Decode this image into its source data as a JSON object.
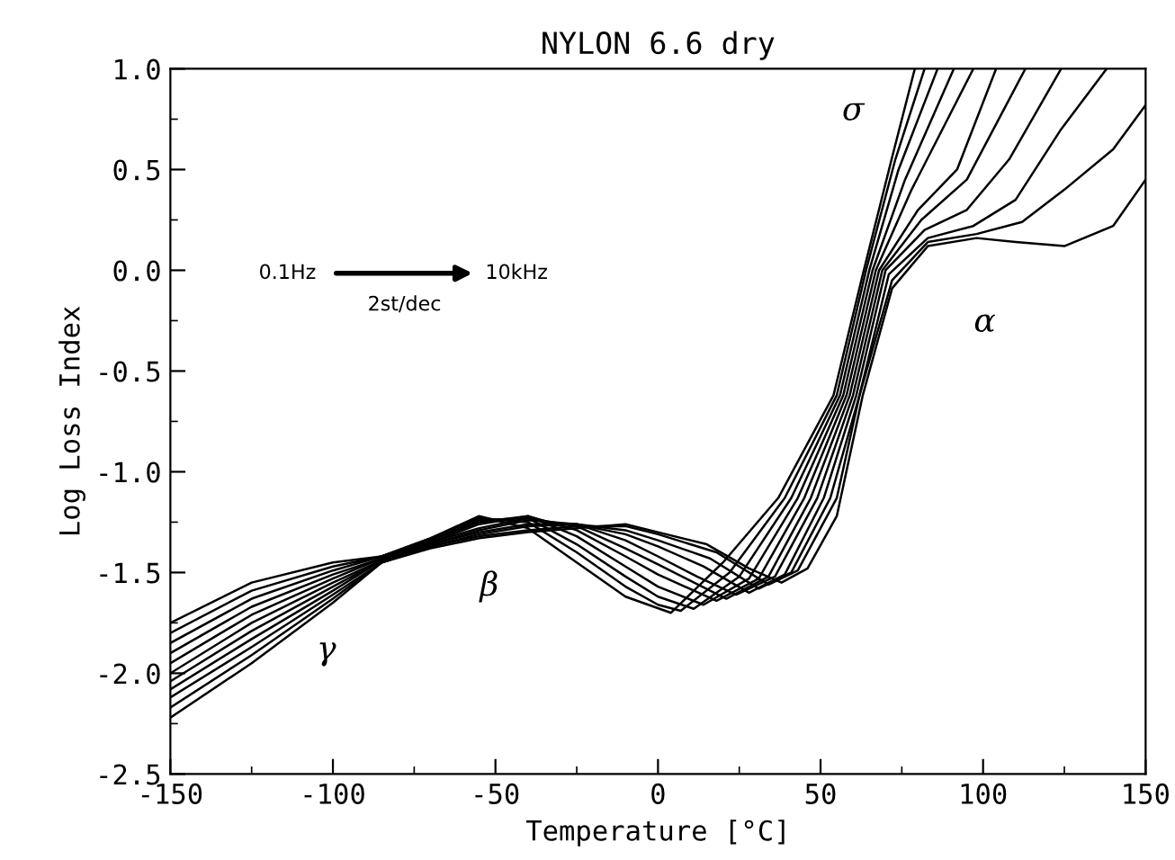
{
  "chart_data": {
    "type": "line",
    "title": "NYLON 6.6 dry",
    "xlabel": "Temperature [°C]",
    "ylabel": "Log Loss Index",
    "xlim": [
      -150,
      150
    ],
    "xticks": [
      -150,
      -100,
      -50,
      0,
      50,
      100,
      150
    ],
    "ylim": [
      -2.5,
      1.0
    ],
    "yticks": [
      {
        "value": -2.5,
        "label": "-2.5"
      },
      {
        "value": -2.0,
        "label": "-2.0"
      },
      {
        "value": -1.5,
        "label": "-1.5"
      },
      {
        "value": -1.0,
        "label": "-1.0"
      },
      {
        "value": -0.5,
        "label": "-0.5"
      },
      {
        "value": 0.0,
        "label": "0.0"
      },
      {
        "value": 0.5,
        "label": "0.5"
      },
      {
        "value": 1.0,
        "label": "1.0"
      }
    ],
    "grid": false,
    "marker": "none",
    "line_style": "solid",
    "series": [
      {
        "color": "#000000",
        "x": [
          -150,
          -125,
          -100,
          -85,
          -70,
          -55,
          -40,
          -25,
          -10,
          4,
          20,
          37,
          54,
          63,
          72,
          79
        ],
        "values": [
          -1.75,
          -1.55,
          -1.45,
          -1.42,
          -1.33,
          -1.22,
          -1.28,
          -1.45,
          -1.62,
          -1.7,
          -1.45,
          -1.13,
          -0.62,
          -0.02,
          0.56,
          1.0
        ]
      },
      {
        "color": "#000000",
        "x": [
          -150,
          -125,
          -100,
          -85,
          -70,
          -55,
          -40,
          -25,
          -10,
          0,
          7,
          22,
          39,
          55,
          64,
          73,
          82
        ],
        "values": [
          -1.8,
          -1.59,
          -1.47,
          -1.42,
          -1.33,
          -1.23,
          -1.25,
          -1.4,
          -1.57,
          -1.66,
          -1.69,
          -1.5,
          -1.13,
          -0.62,
          0.0,
          0.55,
          1.0
        ]
      },
      {
        "color": "#000000",
        "x": [
          -150,
          -125,
          -100,
          -85,
          -70,
          -55,
          -40,
          -25,
          -10,
          0,
          11,
          25,
          41,
          56,
          65,
          74,
          86
        ],
        "values": [
          -1.85,
          -1.63,
          -1.49,
          -1.42,
          -1.34,
          -1.24,
          -1.23,
          -1.36,
          -1.52,
          -1.62,
          -1.68,
          -1.52,
          -1.13,
          -0.62,
          0.0,
          0.5,
          1.0
        ]
      },
      {
        "color": "#000000",
        "x": [
          -150,
          -125,
          -100,
          -85,
          -70,
          -55,
          -40,
          -25,
          -10,
          0,
          14,
          28,
          43,
          57,
          66,
          76,
          91
        ],
        "values": [
          -1.9,
          -1.67,
          -1.51,
          -1.43,
          -1.34,
          -1.25,
          -1.22,
          -1.32,
          -1.47,
          -1.57,
          -1.66,
          -1.53,
          -1.13,
          -0.62,
          0.0,
          0.45,
          1.0
        ]
      },
      {
        "color": "#000000",
        "x": [
          -150,
          -125,
          -100,
          -85,
          -70,
          -55,
          -40,
          -25,
          -10,
          0,
          18,
          31,
          45,
          58,
          67,
          78,
          97
        ],
        "values": [
          -1.95,
          -1.71,
          -1.53,
          -1.43,
          -1.35,
          -1.26,
          -1.22,
          -1.29,
          -1.42,
          -1.51,
          -1.64,
          -1.53,
          -1.13,
          -0.62,
          0.0,
          0.4,
          1.0
        ]
      },
      {
        "color": "#000000",
        "x": [
          -150,
          -125,
          -100,
          -85,
          -70,
          -55,
          -40,
          -25,
          -10,
          0,
          21,
          34,
          47,
          59,
          68,
          80,
          92,
          104
        ],
        "values": [
          -2.0,
          -1.75,
          -1.55,
          -1.44,
          -1.35,
          -1.28,
          -1.23,
          -1.27,
          -1.38,
          -1.46,
          -1.63,
          -1.52,
          -1.13,
          -0.62,
          0.0,
          0.3,
          0.5,
          1.0
        ]
      },
      {
        "color": "#000000",
        "x": [
          -150,
          -125,
          -100,
          -85,
          -70,
          -55,
          -40,
          -25,
          -10,
          0,
          12,
          24,
          36,
          49,
          60,
          69,
          81,
          95,
          113
        ],
        "values": [
          -2.04,
          -1.79,
          -1.57,
          -1.44,
          -1.36,
          -1.29,
          -1.24,
          -1.26,
          -1.34,
          -1.42,
          -1.52,
          -1.61,
          -1.52,
          -1.13,
          -0.62,
          0.0,
          0.25,
          0.45,
          1.0
        ]
      },
      {
        "color": "#000000",
        "x": [
          -150,
          -125,
          -100,
          -85,
          -70,
          -55,
          -40,
          -25,
          -10,
          0,
          14,
          28,
          39,
          51,
          61,
          70,
          82,
          95,
          108,
          124
        ],
        "values": [
          -2.08,
          -1.83,
          -1.59,
          -1.44,
          -1.36,
          -1.3,
          -1.26,
          -1.26,
          -1.31,
          -1.37,
          -1.47,
          -1.6,
          -1.51,
          -1.13,
          -0.62,
          0.0,
          0.2,
          0.3,
          0.55,
          1.0
        ]
      },
      {
        "color": "#000000",
        "x": [
          -150,
          -125,
          -100,
          -85,
          -70,
          -55,
          -40,
          -25,
          -10,
          0,
          16,
          31,
          41,
          53,
          62,
          71,
          83,
          97,
          110,
          124,
          138
        ],
        "values": [
          -2.12,
          -1.87,
          -1.61,
          -1.45,
          -1.37,
          -1.31,
          -1.27,
          -1.26,
          -1.29,
          -1.34,
          -1.43,
          -1.58,
          -1.5,
          -1.13,
          -0.62,
          -0.02,
          0.16,
          0.22,
          0.35,
          0.7,
          1.0
        ]
      },
      {
        "color": "#000000",
        "x": [
          -150,
          -125,
          -100,
          -85,
          -70,
          -55,
          -40,
          -25,
          -10,
          0,
          18,
          34,
          43,
          55,
          62,
          72,
          83,
          98,
          112,
          125,
          140,
          150
        ],
        "values": [
          -2.17,
          -1.91,
          -1.63,
          -1.45,
          -1.37,
          -1.32,
          -1.29,
          -1.27,
          -1.27,
          -1.31,
          -1.4,
          -1.56,
          -1.49,
          -1.13,
          -0.62,
          -0.05,
          0.14,
          0.18,
          0.24,
          0.4,
          0.6,
          0.82
        ]
      },
      {
        "color": "#000000",
        "x": [
          -150,
          -125,
          -100,
          -85,
          -70,
          -55,
          -40,
          -25,
          -10,
          0,
          15,
          28,
          38,
          46,
          55,
          63,
          72,
          83,
          98,
          110,
          125,
          140,
          150
        ],
        "values": [
          -2.22,
          -1.95,
          -1.65,
          -1.45,
          -1.38,
          -1.33,
          -1.3,
          -1.28,
          -1.26,
          -1.3,
          -1.36,
          -1.48,
          -1.55,
          -1.48,
          -1.22,
          -0.62,
          -0.09,
          0.12,
          0.16,
          0.14,
          0.12,
          0.22,
          0.45
        ]
      }
    ],
    "annotations": [
      "σ",
      "α",
      "β",
      "γ",
      "0.1Hz",
      "10kHz",
      "2st/dec"
    ]
  }
}
